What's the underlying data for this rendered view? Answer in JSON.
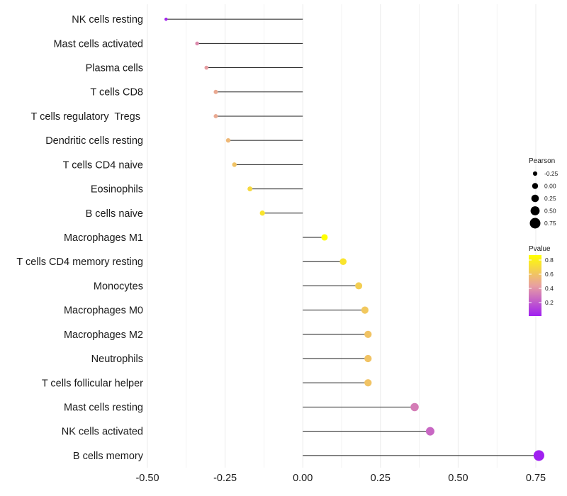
{
  "chart_data": {
    "type": "lollipop",
    "title": "",
    "xlabel": "",
    "ylabel": "",
    "xlim": [
      -0.5,
      0.75
    ],
    "x_ticks": [
      "-0.50",
      "-0.25",
      "0.00",
      "0.25",
      "0.50",
      "0.75"
    ],
    "x_tick_values": [
      -0.5,
      -0.25,
      0.0,
      0.25,
      0.5,
      0.75
    ],
    "grid": "vertical",
    "points": [
      {
        "label": "NK cells resting",
        "pearson": -0.44,
        "pvalue": 0.03
      },
      {
        "label": "Mast cells activated",
        "pearson": -0.34,
        "pvalue": 0.37
      },
      {
        "label": "Plasma cells",
        "pearson": -0.31,
        "pvalue": 0.43
      },
      {
        "label": "T cells CD8",
        "pearson": -0.28,
        "pvalue": 0.48
      },
      {
        "label": "T cells regulatory  Tregs ",
        "pearson": -0.28,
        "pvalue": 0.48
      },
      {
        "label": "Dendritic cells resting",
        "pearson": -0.24,
        "pvalue": 0.55
      },
      {
        "label": "T cells CD4 naive",
        "pearson": -0.22,
        "pvalue": 0.6
      },
      {
        "label": "Eosinophils",
        "pearson": -0.17,
        "pvalue": 0.7
      },
      {
        "label": "B cells naive",
        "pearson": -0.13,
        "pvalue": 0.75
      },
      {
        "label": "Macrophages M1",
        "pearson": 0.07,
        "pvalue": 0.87
      },
      {
        "label": "T cells CD4 memory resting",
        "pearson": 0.13,
        "pvalue": 0.75
      },
      {
        "label": "Monocytes",
        "pearson": 0.18,
        "pvalue": 0.65
      },
      {
        "label": "Macrophages M0",
        "pearson": 0.2,
        "pvalue": 0.62
      },
      {
        "label": "Macrophages M2",
        "pearson": 0.21,
        "pvalue": 0.6
      },
      {
        "label": "Neutrophils",
        "pearson": 0.21,
        "pvalue": 0.6
      },
      {
        "label": "T cells follicular helper",
        "pearson": 0.21,
        "pvalue": 0.6
      },
      {
        "label": "Mast cells resting",
        "pearson": 0.36,
        "pvalue": 0.32
      },
      {
        "label": "NK cells activated",
        "pearson": 0.41,
        "pvalue": 0.25
      },
      {
        "label": "B cells memory",
        "pearson": 0.76,
        "pvalue": 0.01
      }
    ],
    "legend": {
      "size_title": "Pearson",
      "size_breaks": [
        "-0.25",
        "0.00",
        "0.25",
        "0.50",
        "0.75"
      ],
      "size_break_values": [
        -0.25,
        0.0,
        0.25,
        0.5,
        0.75
      ],
      "color_title": "Pvalue",
      "color_breaks": [
        "0.8",
        "0.6",
        "0.4",
        "0.2"
      ],
      "color_break_values": [
        0.8,
        0.6,
        0.4,
        0.2
      ],
      "color_range": [
        0.01,
        0.87
      ],
      "color_low": "#a020f0",
      "color_mid": "#e8a0a0",
      "color_high": "#ffff00"
    },
    "colors": {
      "segment": "#1a1a1a",
      "grid": "#ebebeb",
      "text": "#1a1a1a"
    }
  }
}
